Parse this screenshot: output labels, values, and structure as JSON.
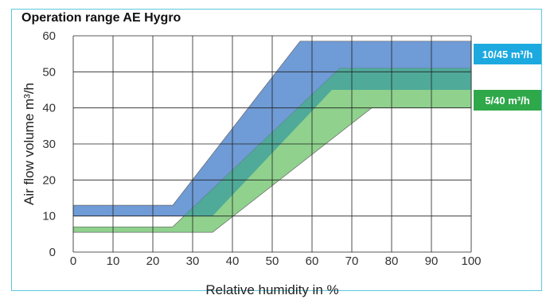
{
  "chart_data": {
    "type": "area",
    "title": "Operation range AE Hygro",
    "xlabel": "Relative humidity in %",
    "ylabel": "Air flow volume m³/h",
    "xlim": [
      0,
      100
    ],
    "ylim": [
      0,
      60
    ],
    "xticks": [
      0,
      10,
      20,
      30,
      40,
      50,
      60,
      70,
      80,
      90,
      100
    ],
    "yticks": [
      0,
      10,
      20,
      30,
      40,
      50,
      60
    ],
    "grid": true,
    "legend_placement": "right",
    "series": [
      {
        "name": "10/45 m³/h",
        "color": "#6f9bd6",
        "upper": [
          [
            0,
            13
          ],
          [
            25,
            13
          ],
          [
            57,
            58.5
          ],
          [
            100,
            58.5
          ]
        ],
        "lower": [
          [
            0,
            10
          ],
          [
            35,
            10
          ],
          [
            65,
            45
          ],
          [
            100,
            45
          ]
        ]
      },
      {
        "name": "5/40 m³/h",
        "color": "#8fd18d",
        "upper": [
          [
            0,
            7
          ],
          [
            25,
            7
          ],
          [
            67,
            51
          ],
          [
            100,
            51
          ]
        ],
        "lower": [
          [
            0,
            5.5
          ],
          [
            35,
            5.5
          ],
          [
            75,
            40
          ],
          [
            100,
            40
          ]
        ]
      }
    ],
    "overlap_color": "#4faa99",
    "legend_colors": [
      "#1ca9e0",
      "#2fa84a"
    ]
  }
}
